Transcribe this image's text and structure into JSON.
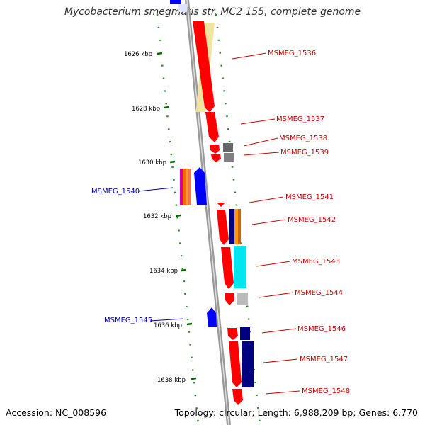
{
  "title": "Mycobacterium smegmatis str. MC2 155, complete genome",
  "footer": {
    "accession": "Accession: NC_008596",
    "topology": "Topology: circular; Length: 6,988,209 bp; Genes: 6,770"
  },
  "ticks": [
    "1626 kbp",
    "1628 kbp",
    "1630 kbp",
    "1632 kbp",
    "1634 kbp",
    "1636 kbp",
    "1638 kbp"
  ],
  "genes_forward": [
    "MSMEG_1536",
    "MSMEG_1537",
    "MSMEG_1538",
    "MSMEG_1539",
    "MSMEG_1541",
    "MSMEG_1542",
    "MSMEG_1543",
    "MSMEG_1544",
    "MSMEG_1546",
    "MSMEG_1547",
    "MSMEG_1548"
  ],
  "genes_reverse": [
    "MSMEG_1540",
    "MSMEG_1545"
  ],
  "colors": {
    "forward_gene": "#ff0000",
    "reverse_gene": "#0000ff",
    "forward_label": "#cc0000",
    "reverse_label": "#0000aa",
    "backbone": "#888888",
    "tick_marks": "#006600"
  }
}
